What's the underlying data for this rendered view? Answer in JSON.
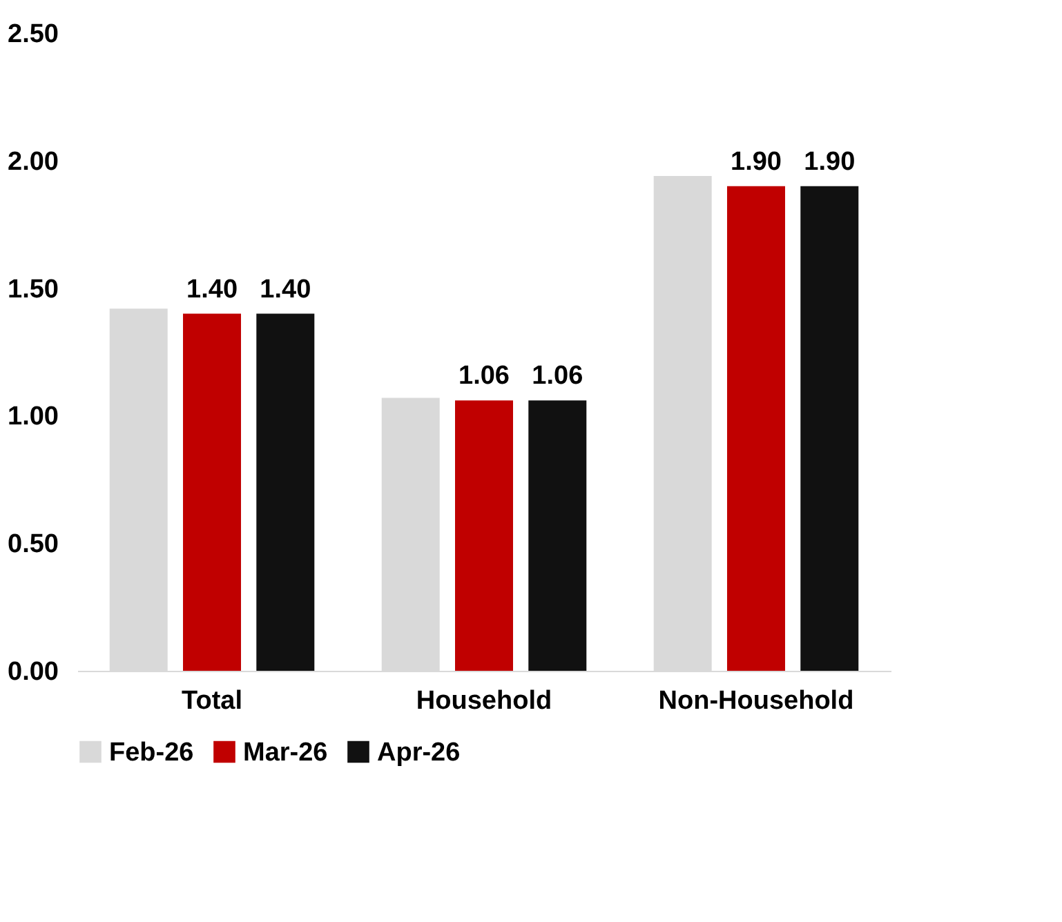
{
  "chart_data": {
    "type": "bar",
    "categories": [
      "Total",
      "Household",
      "Non-Household"
    ],
    "series": [
      {
        "name": "Feb-26",
        "color": "#d9d9d9",
        "values": [
          1.42,
          1.07,
          1.94
        ],
        "value_labels": [
          null,
          null,
          null
        ]
      },
      {
        "name": "Mar-26",
        "color": "#c00000",
        "values": [
          1.4,
          1.06,
          1.9
        ],
        "value_labels": [
          "1.40",
          "1.06",
          "1.90"
        ]
      },
      {
        "name": "Apr-26",
        "color": "#111111",
        "values": [
          1.4,
          1.06,
          1.9
        ],
        "value_labels": [
          "1.40",
          "1.06",
          "1.90"
        ]
      }
    ],
    "ylim": [
      0,
      2.5
    ],
    "yticks": [
      {
        "value": 0,
        "label": "0.00"
      },
      {
        "value": 0.5,
        "label": "0.50"
      },
      {
        "value": 1,
        "label": "1.00"
      },
      {
        "value": 1.5,
        "label": "1.50"
      },
      {
        "value": 2,
        "label": "2.00"
      },
      {
        "value": 2.5,
        "label": "2.50"
      }
    ],
    "grid": false,
    "legend": "bottom"
  }
}
